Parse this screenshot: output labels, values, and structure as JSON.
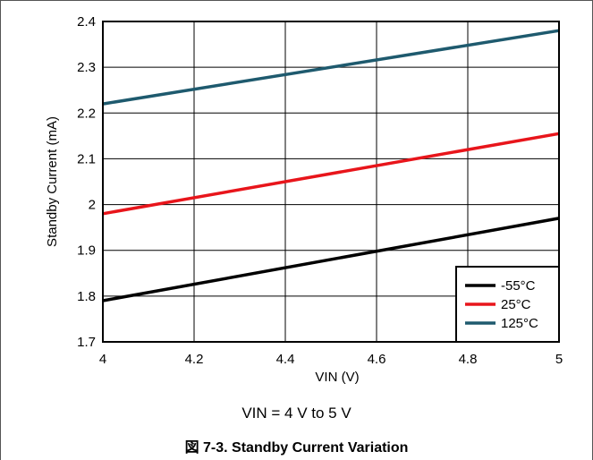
{
  "chart_data": {
    "type": "line",
    "xlabel": "VIN (V)",
    "ylabel": "Standby Current (mA)",
    "xlim": [
      4,
      5
    ],
    "ylim": [
      1.7,
      2.4
    ],
    "x_ticks": [
      4,
      4.2,
      4.4,
      4.6,
      4.8,
      5
    ],
    "x_tick_labels": [
      "4",
      "4.2",
      "4.4",
      "4.6",
      "4.8",
      "5"
    ],
    "y_ticks": [
      1.7,
      1.8,
      1.9,
      2,
      2.1,
      2.2,
      2.3,
      2.4
    ],
    "y_tick_labels": [
      "1.7",
      "1.8",
      "1.9",
      "2",
      "2.1",
      "2.2",
      "2.3",
      "2.4"
    ],
    "grid": true,
    "legend_position": "bottom-right",
    "series": [
      {
        "name": "-55°C",
        "color": "#000000",
        "x": [
          4,
          5
        ],
        "values": [
          1.79,
          1.97
        ]
      },
      {
        "name": "25°C",
        "color": "#e8151b",
        "x": [
          4,
          5
        ],
        "values": [
          1.98,
          2.155
        ]
      },
      {
        "name": "125°C",
        "color": "#1e5a6e",
        "x": [
          4,
          5
        ],
        "values": [
          2.22,
          2.38
        ]
      }
    ]
  },
  "condition_text": "VIN = 4 V to 5 V",
  "figure_caption": "図 7-3. Standby Current Variation"
}
